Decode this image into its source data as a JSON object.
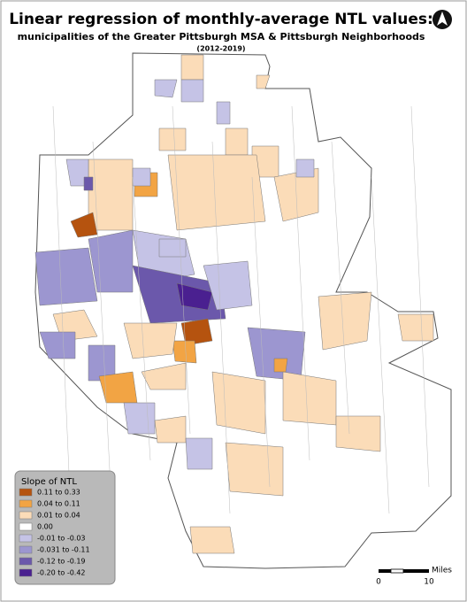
{
  "header": {
    "title": "Linear regression of monthly-average NTL values:",
    "subtitle": "municipalities of the Greater Pittsburgh MSA & Pittsburgh Neighborhoods",
    "years": "(2012-2019)"
  },
  "legend": {
    "title": "Slope of NTL",
    "items": [
      {
        "label": "0.11 to 0.33",
        "color": "#b5530f"
      },
      {
        "label": "0.04 to 0.11",
        "color": "#f2a444"
      },
      {
        "label": "0.01 to 0.04",
        "color": "#fbdcb8"
      },
      {
        "label": "0.00",
        "color": "#ffffff"
      },
      {
        "label": "-0.01 to -0.03",
        "color": "#c5c3e6"
      },
      {
        "label": "-0.031 to -0.11",
        "color": "#9c96d0"
      },
      {
        "label": "-0.12 to -0.19",
        "color": "#6b58ab"
      },
      {
        "label": "-0.20 to -0.42",
        "color": "#4a2090"
      }
    ]
  },
  "scale_bar": {
    "unit": "Miles",
    "start": 0,
    "end": 10
  }
}
